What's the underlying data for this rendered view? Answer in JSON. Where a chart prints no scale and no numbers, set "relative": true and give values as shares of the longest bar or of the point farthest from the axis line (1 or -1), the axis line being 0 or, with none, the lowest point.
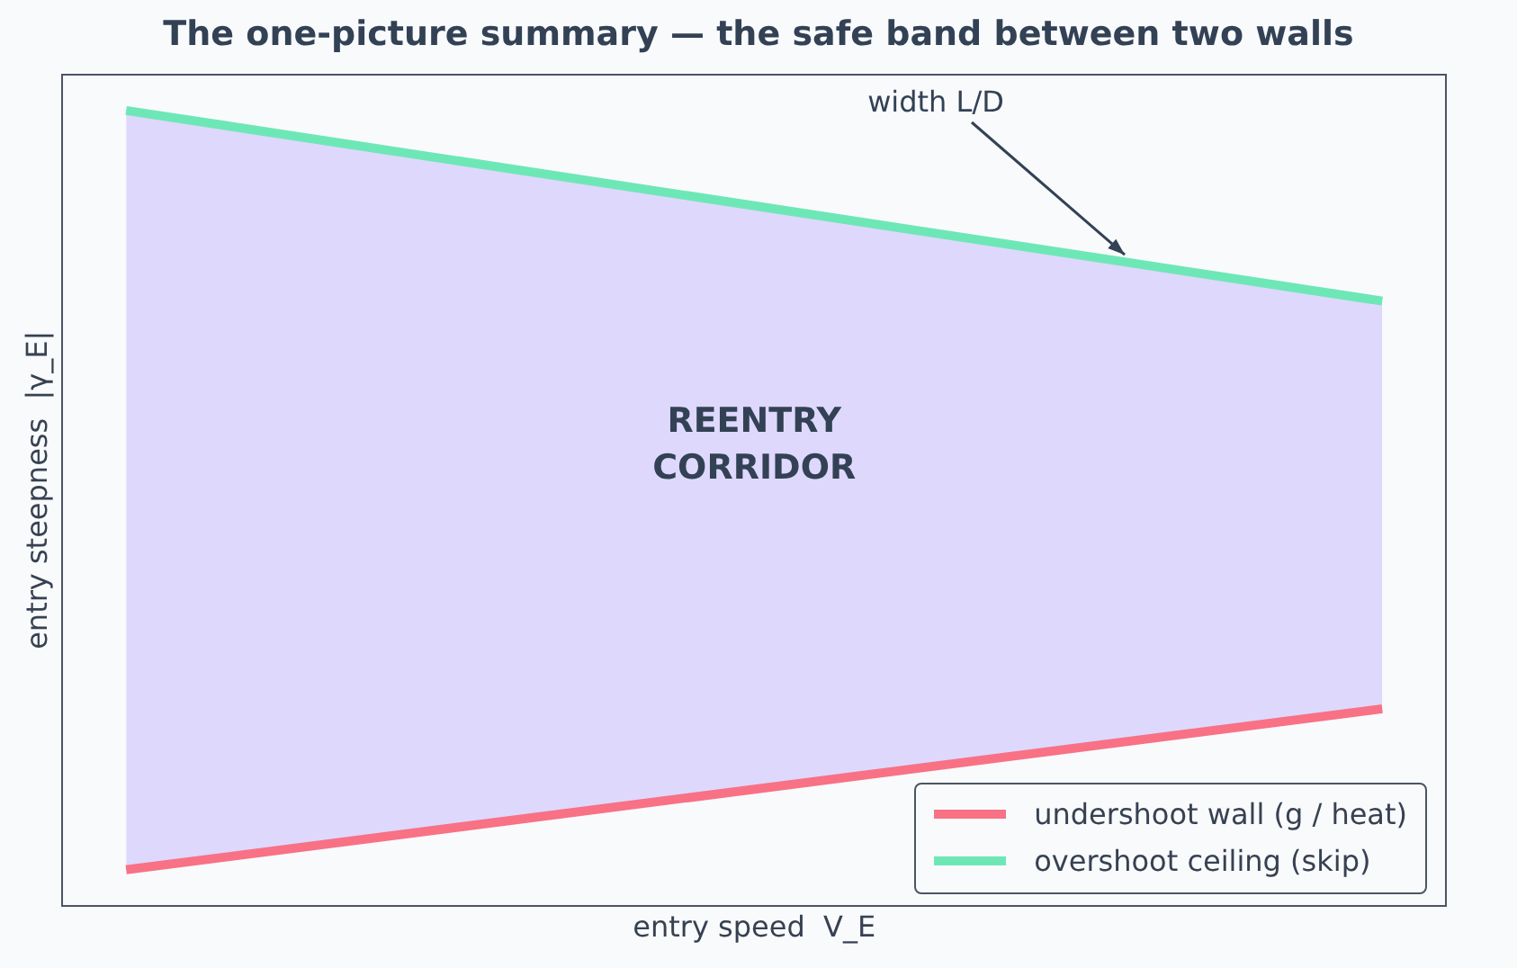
{
  "chart_data": {
    "type": "line",
    "title": "The one-picture summary — the safe band between two walls",
    "xlabel": "entry speed  V_E",
    "ylabel": "entry steepness  |γ_E|",
    "relative": true,
    "categories": [
      null,
      null
    ],
    "series": [
      {
        "name": "undershoot wall (g / heat)",
        "color": "#f87185",
        "values": [
          0,
          0.212
        ]
      },
      {
        "name": "overshoot ceiling (skip)",
        "color": "#6ee7b7",
        "values": [
          1,
          0.749
        ],
        "lower": [
          0,
          0.212
        ],
        "upper": [
          1,
          0.749
        ]
      }
    ],
    "annotations": [
      "REENTRY\nCORRIDOR",
      "width L/D"
    ],
    "legend": "bottom right",
    "grid": false
  }
}
